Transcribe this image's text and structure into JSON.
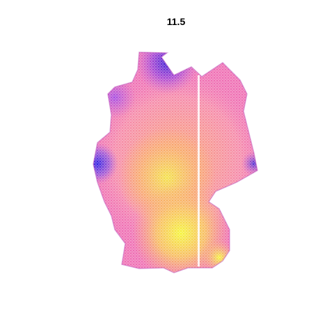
{
  "title": "11.5"
}
